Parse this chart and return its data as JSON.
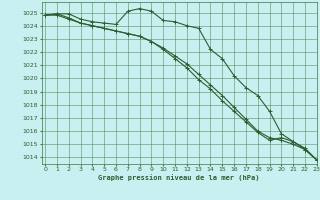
{
  "title": "Graphe pression niveau de la mer (hPa)",
  "bg_color": "#c8f0f0",
  "grid_color": "#3d7a3d",
  "line_color": "#2d5e2d",
  "ylim": [
    1013.5,
    1025.8
  ],
  "xlim": [
    -0.3,
    23
  ],
  "yticks": [
    1014,
    1015,
    1016,
    1017,
    1018,
    1019,
    1020,
    1021,
    1022,
    1023,
    1024,
    1025
  ],
  "xticks": [
    0,
    1,
    2,
    3,
    4,
    5,
    6,
    7,
    8,
    9,
    10,
    11,
    12,
    13,
    14,
    15,
    16,
    17,
    18,
    19,
    20,
    21,
    22,
    23
  ],
  "series": [
    [
      1024.8,
      1024.9,
      1024.9,
      1024.5,
      1024.3,
      1024.2,
      1024.1,
      1025.1,
      1025.3,
      1025.1,
      1024.4,
      1024.3,
      1024.0,
      1023.8,
      1022.2,
      1021.5,
      1020.2,
      1019.3,
      1018.7,
      1017.5,
      1015.8,
      1015.2,
      1014.6,
      1013.8
    ],
    [
      1024.8,
      1024.9,
      1024.6,
      1024.2,
      1024.0,
      1023.8,
      1023.6,
      1023.4,
      1023.2,
      1022.8,
      1022.3,
      1021.7,
      1021.1,
      1020.3,
      1019.5,
      1018.7,
      1017.8,
      1016.9,
      1016.0,
      1015.5,
      1015.3,
      1015.0,
      1014.6,
      1013.8
    ],
    [
      1024.8,
      1024.8,
      1024.5,
      1024.2,
      1024.0,
      1023.8,
      1023.6,
      1023.4,
      1023.2,
      1022.8,
      1022.2,
      1021.5,
      1020.8,
      1019.9,
      1019.2,
      1018.3,
      1017.5,
      1016.7,
      1015.9,
      1015.3,
      1015.5,
      1015.2,
      1014.7,
      1013.8
    ]
  ]
}
